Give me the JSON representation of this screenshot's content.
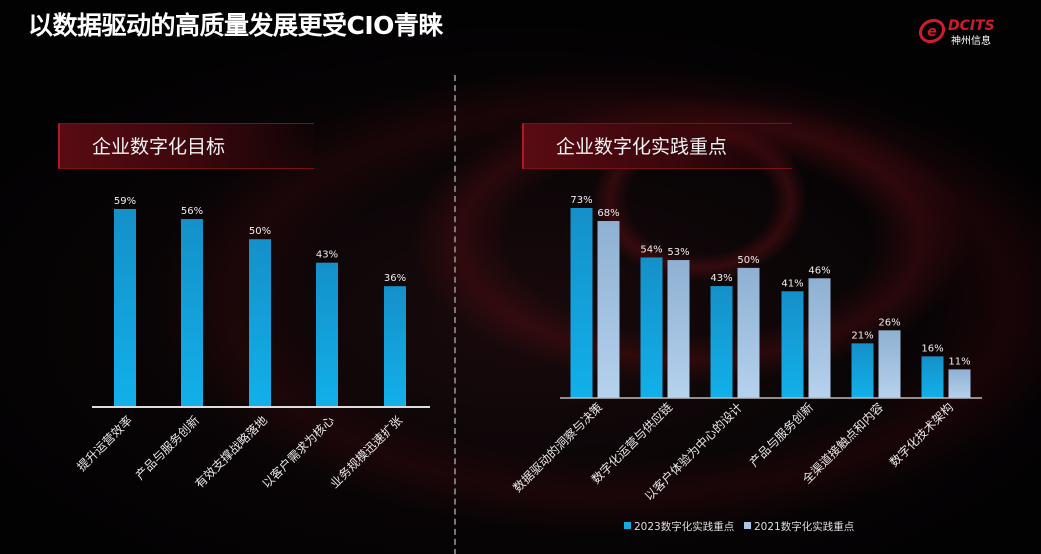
{
  "title": "以数据驱动的高质量发展更受CIO青睐",
  "logo": {
    "text": "DCITS",
    "subtext": "神州信息"
  },
  "colors": {
    "series_2023": "#1aa6e0",
    "series_2021": "#a9c6e4",
    "header_red": "#8a0f1a",
    "accent_red": "#d01c2a"
  },
  "chart_data": [
    {
      "type": "bar",
      "title": "企业数字化目标",
      "categories": [
        "提升运营效率",
        "产品与服务创新",
        "有效支撑战略落地",
        "以客户需求为核心",
        "业务规模迅速扩张"
      ],
      "values": [
        59,
        56,
        50,
        43,
        36
      ],
      "value_labels": [
        "59%",
        "56%",
        "50%",
        "43%",
        "36%"
      ],
      "unit": "%",
      "ylim": [
        0,
        60
      ],
      "grid": false
    },
    {
      "type": "bar",
      "title": "企业数字化实践重点",
      "categories": [
        "数据驱动的洞察与决策",
        "数字化运营与供应链",
        "以客户体验为中心的设计",
        "产品与服务创新",
        "全渠道接触点和内容",
        "数字化技术架构"
      ],
      "series": [
        {
          "name": "2023数字化实践重点",
          "values": [
            73,
            54,
            43,
            41,
            21,
            16
          ],
          "labels": [
            "73%",
            "54%",
            "43%",
            "41%",
            "21%",
            "16%"
          ]
        },
        {
          "name": "2021数字化实践重点",
          "values": [
            68,
            53,
            50,
            46,
            26,
            11
          ],
          "labels": [
            "68%",
            "53%",
            "50%",
            "46%",
            "26%",
            "11%"
          ]
        }
      ],
      "unit": "%",
      "ylim": [
        0,
        75
      ],
      "grid": false,
      "legend": "bottom"
    }
  ]
}
